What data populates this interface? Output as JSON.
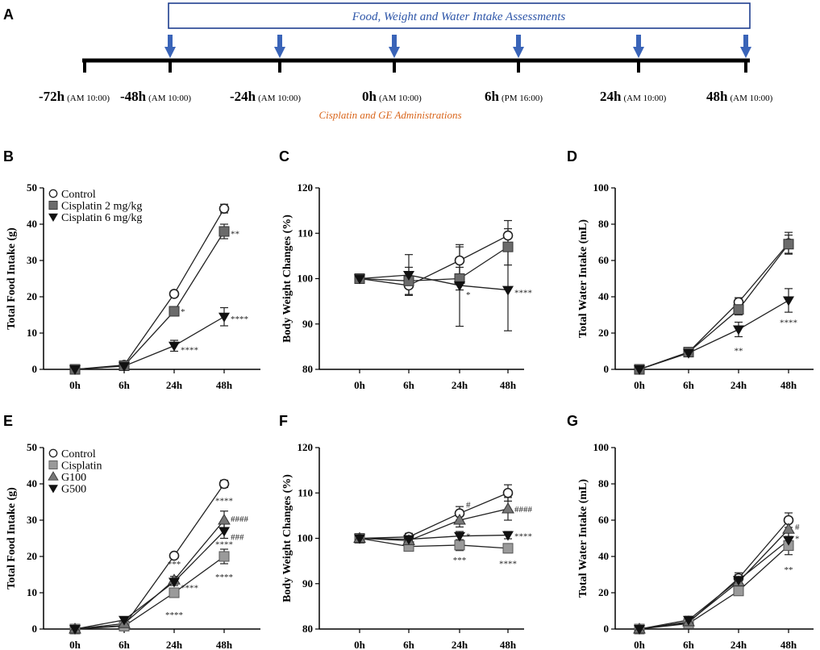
{
  "timeline": {
    "panel_label": "A",
    "assessment_label": "Food, Weight and Water Intake Assessments",
    "administration_label": "Cisplatin and GE Administrations",
    "points": [
      {
        "time": "-72h",
        "clock": "(AM 10:00)",
        "arrow": false
      },
      {
        "time": "-48h",
        "clock": "(AM 10:00)",
        "arrow": true
      },
      {
        "time": "-24h",
        "clock": "(AM 10:00)",
        "arrow": true
      },
      {
        "time": "0h",
        "clock": "(AM 10:00)",
        "arrow": true
      },
      {
        "time": "6h",
        "clock": "(PM 16:00)",
        "arrow": true
      },
      {
        "time": "24h",
        "clock": "(AM 10:00)",
        "arrow": true
      },
      {
        "time": "48h",
        "clock": "(AM 10:00)",
        "arrow": true
      }
    ],
    "colors": {
      "box": "#1f3f8f",
      "arrow": "#3a64b8",
      "assessment_text": "#2d55a8",
      "administration_text": "#d9661c"
    }
  },
  "chart_data": [
    {
      "panel": "B",
      "type": "line",
      "ylabel": "Total Food Intake (g)",
      "categories": [
        "0h",
        "6h",
        "24h",
        "48h"
      ],
      "ylim": [
        0,
        50
      ],
      "yticks": [
        0,
        10,
        20,
        30,
        40,
        50
      ],
      "legend": [
        "Control",
        "Cisplatin 2 mg/kg",
        "Cisplatin 6 mg/kg"
      ],
      "series": [
        {
          "name": "Control",
          "marker": "circle",
          "values": [
            0,
            1.2,
            20.8,
            44.3
          ],
          "err": [
            0.4,
            0.5,
            0.8,
            1.2
          ]
        },
        {
          "name": "Cisplatin 2 mg/kg",
          "marker": "square",
          "values": [
            0,
            1.0,
            16.0,
            38.0
          ],
          "err": [
            0.4,
            0.5,
            1.0,
            2.0
          ]
        },
        {
          "name": "Cisplatin 6 mg/kg",
          "marker": "tri-down",
          "values": [
            0,
            0.9,
            6.5,
            14.5
          ],
          "err": [
            0.4,
            0.5,
            1.5,
            2.5
          ]
        }
      ],
      "annotations": [
        {
          "x": "24h",
          "y": 16.0,
          "text": "*",
          "pos": "right"
        },
        {
          "x": "24h",
          "y": 5.5,
          "text": "****",
          "pos": "right"
        },
        {
          "x": "48h",
          "y": 37.5,
          "text": "**",
          "pos": "right"
        },
        {
          "x": "48h",
          "y": 14.0,
          "text": "****",
          "pos": "right"
        }
      ]
    },
    {
      "panel": "C",
      "type": "line",
      "ylabel": "Body Weight Changes (%)",
      "categories": [
        "0h",
        "6h",
        "24h",
        "48h"
      ],
      "ylim": [
        80,
        120
      ],
      "yticks": [
        80,
        90,
        100,
        110,
        120
      ],
      "legend": [],
      "series": [
        {
          "name": "Control",
          "marker": "circle",
          "values": [
            100,
            98.5,
            104,
            109.5
          ],
          "err": [
            0.5,
            2.0,
            3.0,
            3.3
          ]
        },
        {
          "name": "Cisplatin 2 mg/kg",
          "marker": "square",
          "values": [
            100,
            99.5,
            100,
            107
          ],
          "err": [
            0.5,
            3.0,
            2.5,
            4.0
          ]
        },
        {
          "name": "Cisplatin 6 mg/kg",
          "marker": "tri-down",
          "values": [
            100,
            100.8,
            98.5,
            97.5
          ],
          "err": [
            0.5,
            4.5,
            9.0,
            9.0
          ]
        }
      ],
      "annotations": [
        {
          "x": "24h",
          "y": 96.5,
          "text": "*",
          "pos": "right"
        },
        {
          "x": "48h",
          "y": 97.0,
          "text": "****",
          "pos": "right"
        }
      ]
    },
    {
      "panel": "D",
      "type": "line",
      "ylabel": "Total Water Intake (mL)",
      "categories": [
        "0h",
        "6h",
        "24h",
        "48h"
      ],
      "ylim": [
        0,
        100
      ],
      "yticks": [
        0,
        20,
        40,
        60,
        80,
        100
      ],
      "legend": [],
      "series": [
        {
          "name": "Control",
          "marker": "circle",
          "values": [
            0,
            9.5,
            37,
            69.5
          ],
          "err": [
            0.5,
            1.5,
            2.5,
            6.0
          ]
        },
        {
          "name": "Cisplatin 2 mg/kg",
          "marker": "square",
          "values": [
            0,
            9.5,
            33,
            69
          ],
          "err": [
            0.5,
            1.5,
            3.0,
            5.0
          ]
        },
        {
          "name": "Cisplatin 6 mg/kg",
          "marker": "tri-down",
          "values": [
            0,
            9.0,
            22,
            38
          ],
          "err": [
            0.5,
            1.5,
            4.0,
            6.5
          ]
        }
      ],
      "annotations": [
        {
          "x": "24h",
          "y": 10.5,
          "text": "**",
          "pos": "center"
        },
        {
          "x": "48h",
          "y": 26,
          "text": "****",
          "pos": "center"
        }
      ]
    },
    {
      "panel": "E",
      "type": "line",
      "ylabel": "Total Food Intake (g)",
      "categories": [
        "0h",
        "6h",
        "24h",
        "48h"
      ],
      "ylim": [
        0,
        50
      ],
      "yticks": [
        0,
        10,
        20,
        30,
        40,
        50
      ],
      "legend": [
        "Control",
        "Cisplatin",
        "G100",
        "G500"
      ],
      "series": [
        {
          "name": "Control",
          "marker": "circle",
          "values": [
            0,
            1.0,
            20.2,
            40.0
          ],
          "err": [
            0.4,
            0.5,
            0.6,
            1.0
          ]
        },
        {
          "name": "Cisplatin",
          "marker": "square-light",
          "values": [
            0,
            0.8,
            10.0,
            20.0
          ],
          "err": [
            0.4,
            0.5,
            1.0,
            2.0
          ]
        },
        {
          "name": "G100",
          "marker": "triangle",
          "values": [
            0,
            1.5,
            13.5,
            30.0
          ],
          "err": [
            0.4,
            0.5,
            1.0,
            2.5
          ]
        },
        {
          "name": "G500",
          "marker": "tri-down",
          "values": [
            0,
            2.5,
            13.0,
            27.0
          ],
          "err": [
            0.4,
            0.6,
            1.0,
            2.0
          ]
        }
      ],
      "annotations": [
        {
          "x": "24h",
          "y": 18.0,
          "text": "***",
          "pos": "center"
        },
        {
          "x": "24h",
          "y": 11.5,
          "text": "****",
          "pos": "right"
        },
        {
          "x": "24h",
          "y": 4.0,
          "text": "****",
          "pos": "center"
        },
        {
          "x": "48h",
          "y": 35.5,
          "text": "****",
          "pos": "center"
        },
        {
          "x": "48h",
          "y": 30.5,
          "text": "####",
          "pos": "right"
        },
        {
          "x": "48h",
          "y": 25.5,
          "text": "###",
          "pos": "right"
        },
        {
          "x": "48h",
          "y": 23.5,
          "text": "****",
          "pos": "center"
        },
        {
          "x": "48h",
          "y": 14.5,
          "text": "****",
          "pos": "center"
        }
      ]
    },
    {
      "panel": "F",
      "type": "line",
      "ylabel": "Body Weight Changes (%)",
      "categories": [
        "0h",
        "6h",
        "24h",
        "48h"
      ],
      "ylim": [
        80,
        120
      ],
      "yticks": [
        80,
        90,
        100,
        110,
        120
      ],
      "legend": [],
      "series": [
        {
          "name": "Control",
          "marker": "circle",
          "values": [
            100,
            100.3,
            105.5,
            110
          ],
          "err": [
            0.5,
            0.8,
            1.5,
            1.8
          ]
        },
        {
          "name": "Cisplatin",
          "marker": "square-light",
          "values": [
            100,
            98.2,
            98.5,
            97.8
          ],
          "err": [
            0.5,
            0.6,
            1.2,
            1.0
          ]
        },
        {
          "name": "G100",
          "marker": "triangle",
          "values": [
            100,
            99.5,
            104,
            106.5
          ],
          "err": [
            0.5,
            0.6,
            1.5,
            2.5
          ]
        },
        {
          "name": "G500",
          "marker": "tri-down",
          "values": [
            100,
            99.8,
            100.5,
            100.7
          ],
          "err": [
            0.5,
            0.6,
            1.0,
            0.8
          ]
        }
      ],
      "annotations": [
        {
          "x": "24h",
          "y": 107.5,
          "text": "#",
          "pos": "right"
        },
        {
          "x": "24h",
          "y": 100.5,
          "text": "*",
          "pos": "right"
        },
        {
          "x": "24h",
          "y": 95.3,
          "text": "***",
          "pos": "center"
        },
        {
          "x": "48h",
          "y": 106.5,
          "text": "####",
          "pos": "right"
        },
        {
          "x": "48h",
          "y": 100.5,
          "text": "****",
          "pos": "right"
        },
        {
          "x": "48h",
          "y": 94.5,
          "text": "****",
          "pos": "center"
        }
      ]
    },
    {
      "panel": "G",
      "type": "line",
      "ylabel": "Total Water Intake (mL)",
      "categories": [
        "0h",
        "6h",
        "24h",
        "48h"
      ],
      "ylim": [
        0,
        100
      ],
      "yticks": [
        0,
        20,
        40,
        60,
        80,
        100
      ],
      "legend": [],
      "series": [
        {
          "name": "Control",
          "marker": "circle",
          "values": [
            0,
            3.5,
            28,
            60
          ],
          "err": [
            0.5,
            1.5,
            3.0,
            4.0
          ]
        },
        {
          "name": "Cisplatin",
          "marker": "square-light",
          "values": [
            0,
            3.0,
            21,
            46
          ],
          "err": [
            0.5,
            1.5,
            2.5,
            5.0
          ]
        },
        {
          "name": "G100",
          "marker": "triangle",
          "values": [
            0,
            4.0,
            26,
            55
          ],
          "err": [
            0.5,
            2.0,
            3.0,
            4.0
          ]
        },
        {
          "name": "G500",
          "marker": "tri-down",
          "values": [
            0,
            5.0,
            27,
            49
          ],
          "err": [
            0.5,
            2.0,
            3.0,
            4.0
          ]
        }
      ],
      "annotations": [
        {
          "x": "48h",
          "y": 56.5,
          "text": "#",
          "pos": "right"
        },
        {
          "x": "48h",
          "y": 50,
          "text": "*",
          "pos": "right"
        },
        {
          "x": "48h",
          "y": 33,
          "text": "**",
          "pos": "center"
        }
      ]
    }
  ]
}
